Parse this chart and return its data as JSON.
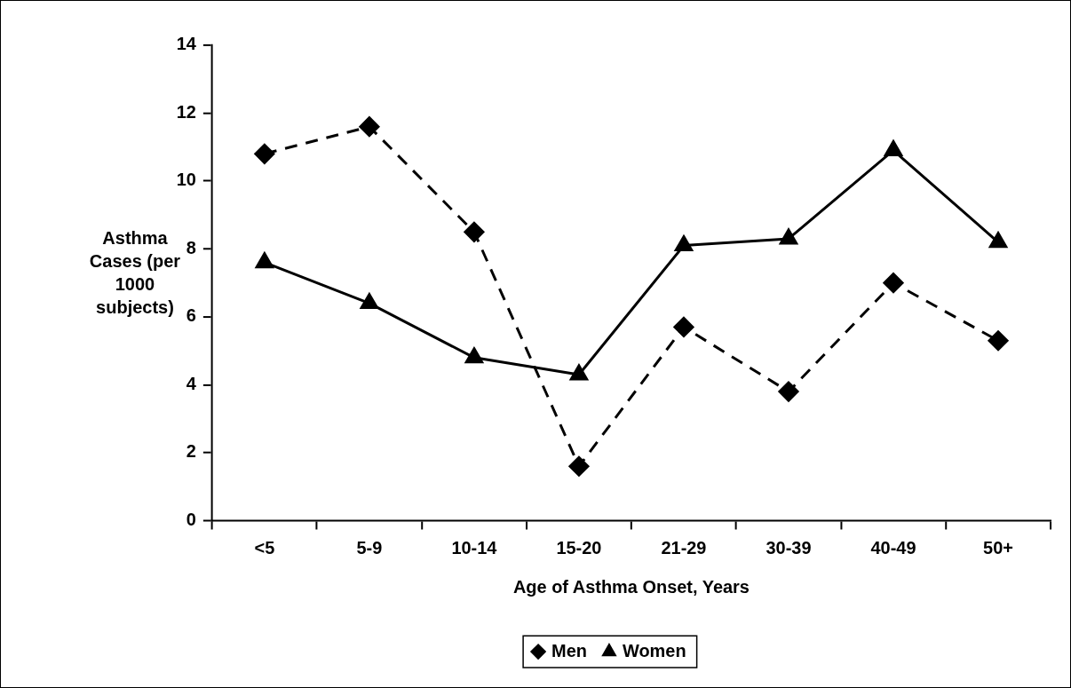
{
  "chart_data": {
    "type": "line",
    "xlabel": "Age of Asthma Onset, Years",
    "ylabel": "Asthma Cases (per 1000 subjects)",
    "categories": [
      "<5",
      "5-9",
      "10-14",
      "15-20",
      "21-29",
      "30-39",
      "40-49",
      "50+"
    ],
    "series": [
      {
        "name": "Men",
        "color": "#000000",
        "marker": "diamond",
        "line_style": "dashed",
        "values": [
          10.8,
          11.6,
          8.5,
          1.6,
          5.7,
          3.8,
          7.0,
          5.3
        ]
      },
      {
        "name": "Women",
        "color": "#000000",
        "marker": "triangle",
        "line_style": "solid",
        "values": [
          7.6,
          6.4,
          4.8,
          4.3,
          8.1,
          8.3,
          10.9,
          8.2
        ]
      }
    ],
    "ylim": [
      0,
      14
    ],
    "yticks": [
      0,
      2,
      4,
      6,
      8,
      10,
      12,
      14
    ],
    "grid": false,
    "legend": "bottom"
  }
}
